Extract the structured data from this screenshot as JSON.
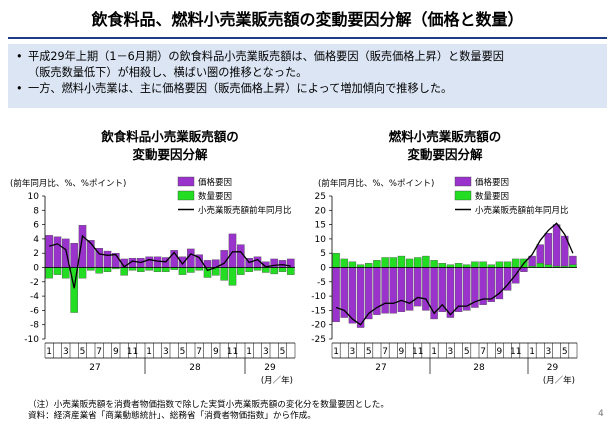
{
  "title": "飲食料品、燃料小売業販売額の変動要因分解（価格と数量）",
  "summary": {
    "bullet_symbol": "•",
    "line1a": "平成29年上期（1－6月期）の飲食料品小売業販売額は、価格要因（販売価格上昇）と数量要因",
    "line1b": "（販売数量低下）が相殺し、横ばい圏の推移となった。",
    "line2": "一方、燃料小売業は、主に価格要因（販売価格上昇）によって増加傾向で推移した。"
  },
  "footnote": {
    "line1": "（注）小売業販売額を消費者物価指数で除した実質小売業販売額の変化分を数量要因とした。",
    "line2": "資料：経済産業省「商業動態統計」、総務省「消費者物価指数」から作成。"
  },
  "page_number": "4",
  "colors": {
    "price": "#9933cc",
    "quantity": "#22dd22",
    "line": "#000000",
    "rule": "#1f3c88",
    "summary_bg": "#dbe5f4"
  },
  "chart_data": [
    {
      "type": "bar",
      "title_line1": "飲食料品小売業販売額の",
      "title_line2": "変動要因分解",
      "ylabel": "(前年同月比、%、%ポイント)",
      "ylim": [
        -10,
        10
      ],
      "yticks": [
        -10,
        -8,
        -6,
        -4,
        -2,
        0,
        2,
        4,
        6,
        8,
        10
      ],
      "x_tick_labels": [
        "1",
        "",
        "3",
        "",
        "5",
        "",
        "7",
        "",
        "9",
        "",
        "11",
        "",
        "1",
        "",
        "3",
        "",
        "5",
        "",
        "7",
        "",
        "9",
        "",
        "11",
        "",
        "1",
        "",
        "3",
        "",
        "5",
        ""
      ],
      "year_labels": [
        {
          "label": "27",
          "start": 0,
          "end": 11
        },
        {
          "label": "28",
          "start": 12,
          "end": 23
        },
        {
          "label": "29",
          "start": 24,
          "end": 29
        }
      ],
      "xunit": "(月／年)",
      "series": [
        {
          "name": "価格要因",
          "kind": "bar",
          "values": [
            4.5,
            4.3,
            4.0,
            3.4,
            5.9,
            3.8,
            2.7,
            2.3,
            2.0,
            1.2,
            1.3,
            1.3,
            1.5,
            1.5,
            1.4,
            2.4,
            1.5,
            2.6,
            1.8,
            1.0,
            1.1,
            2.4,
            4.7,
            3.2,
            1.3,
            1.5,
            0.8,
            1.2,
            1.0,
            1.2
          ]
        },
        {
          "name": "数量要因",
          "kind": "bar",
          "values": [
            -1.5,
            -1.0,
            -1.5,
            -6.3,
            -1.5,
            -0.4,
            -0.8,
            -0.6,
            -0.2,
            -1.1,
            -0.4,
            -0.6,
            -0.4,
            -0.6,
            -0.6,
            -0.3,
            -1.0,
            -0.7,
            -0.4,
            -1.4,
            -1.1,
            -1.8,
            -2.5,
            -1.0,
            -0.6,
            -0.4,
            -0.7,
            -0.9,
            -0.6,
            -1.0
          ]
        },
        {
          "name": "小売業販売額前年同月比",
          "kind": "line",
          "values": [
            3.0,
            3.3,
            2.5,
            -2.9,
            4.4,
            3.4,
            1.9,
            1.7,
            1.8,
            0.1,
            0.9,
            0.7,
            1.1,
            0.9,
            0.8,
            2.1,
            0.5,
            1.9,
            1.4,
            -0.4,
            0.0,
            0.6,
            2.2,
            2.2,
            0.7,
            1.1,
            0.1,
            0.3,
            0.4,
            0.2
          ]
        }
      ]
    },
    {
      "type": "bar",
      "title_line1": "燃料小売業販売額の",
      "title_line2": "変動要因分解",
      "ylabel": "(前年同月比、%、%ポイント)",
      "ylim": [
        -25,
        25
      ],
      "yticks": [
        -25,
        -20,
        -15,
        -10,
        -5,
        0,
        5,
        10,
        15,
        20,
        25
      ],
      "x_tick_labels": [
        "1",
        "",
        "3",
        "",
        "5",
        "",
        "7",
        "",
        "9",
        "",
        "11",
        "",
        "1",
        "",
        "3",
        "",
        "5",
        "",
        "7",
        "",
        "9",
        "",
        "11",
        "",
        "1",
        "",
        "3",
        "",
        "5",
        ""
      ],
      "year_labels": [
        {
          "label": "27",
          "start": 0,
          "end": 11
        },
        {
          "label": "28",
          "start": 12,
          "end": 23
        },
        {
          "label": "29",
          "start": 24,
          "end": 29
        }
      ],
      "xunit": "(月／年)",
      "series": [
        {
          "name": "価格要因",
          "kind": "bar",
          "values": [
            -19.0,
            -17.5,
            -19.5,
            -21.0,
            -18.0,
            -16.5,
            -16.0,
            -16.0,
            -15.5,
            -15.0,
            -13.5,
            -15.0,
            -18.0,
            -15.5,
            -17.5,
            -15.5,
            -15.0,
            -14.0,
            -13.0,
            -12.0,
            -11.0,
            -8.0,
            -5.5,
            -1.5,
            4.0,
            8.0,
            12.0,
            15.0,
            11.0,
            4.0
          ]
        },
        {
          "name": "数量要因",
          "kind": "bar",
          "values": [
            5.0,
            3.0,
            2.0,
            1.0,
            1.5,
            2.5,
            3.5,
            3.5,
            4.0,
            3.0,
            3.5,
            4.0,
            2.5,
            1.5,
            1.0,
            1.5,
            1.0,
            2.0,
            2.0,
            1.0,
            2.0,
            2.0,
            3.0,
            3.0,
            0.5,
            1.5,
            1.0,
            0.5,
            0.5,
            1.0
          ]
        },
        {
          "name": "小売業販売額前年同月比",
          "kind": "line",
          "values": [
            -14.0,
            -15.0,
            -18.0,
            -20.0,
            -16.0,
            -14.0,
            -12.5,
            -12.5,
            -11.5,
            -12.5,
            -10.5,
            -11.0,
            -16.0,
            -13.0,
            -16.5,
            -13.5,
            -13.5,
            -12.0,
            -11.0,
            -11.0,
            -9.0,
            -6.0,
            -2.5,
            1.5,
            4.5,
            9.5,
            13.0,
            15.5,
            11.5,
            5.0
          ]
        }
      ]
    }
  ]
}
